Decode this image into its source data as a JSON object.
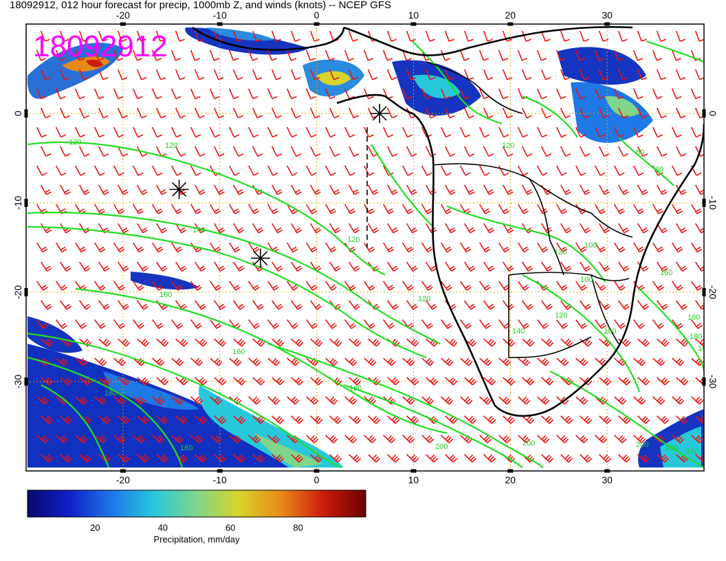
{
  "title": "18092912, 012 hour forecast for precip, 1000mb Z, and winds (knots) -- NCEP GFS",
  "stamp": "18092912",
  "colors": {
    "frame": "#000000",
    "grid": "#e0a800",
    "contour": "#22dd22",
    "barb": "#ee1111",
    "coast": "#000000",
    "stamp": "#ff00ff"
  },
  "map": {
    "lon_range": [
      -30,
      40
    ],
    "lat_range": [
      -40,
      10
    ],
    "lon_ticks": [
      "-20",
      "-10",
      "0",
      "10",
      "20",
      "30"
    ],
    "lat_ticks": [
      "0",
      "-10",
      "-20",
      "-30"
    ],
    "grid": true
  },
  "contour_labels": [
    "120",
    "120",
    "120",
    "140",
    "120",
    "120",
    "160",
    "160",
    "180",
    "200",
    "200",
    "200",
    "200",
    "180",
    "160",
    "140",
    "180",
    "160",
    "120",
    "100",
    "80",
    "80",
    "100",
    "120",
    "160",
    "180",
    "180",
    "180"
  ],
  "colorbar": {
    "label": "Precipitation, mm/day",
    "range": [
      0,
      100
    ],
    "ticks": [
      "20",
      "40",
      "60",
      "80"
    ],
    "colors": [
      "#08086b",
      "#1020c8",
      "#1e78e6",
      "#28c8dc",
      "#7fd68a",
      "#d8d42a",
      "#e88a18",
      "#cc1c0c",
      "#6a0000"
    ]
  },
  "markers": [
    {
      "name": "asterisk-0n-7e",
      "lon": 6.5,
      "lat": 0
    },
    {
      "name": "asterisk-8s-14w",
      "lon": -14.2,
      "lat": -8.5
    },
    {
      "name": "asterisk-16s-6w",
      "lon": -5.8,
      "lat": -16.2
    }
  ]
}
